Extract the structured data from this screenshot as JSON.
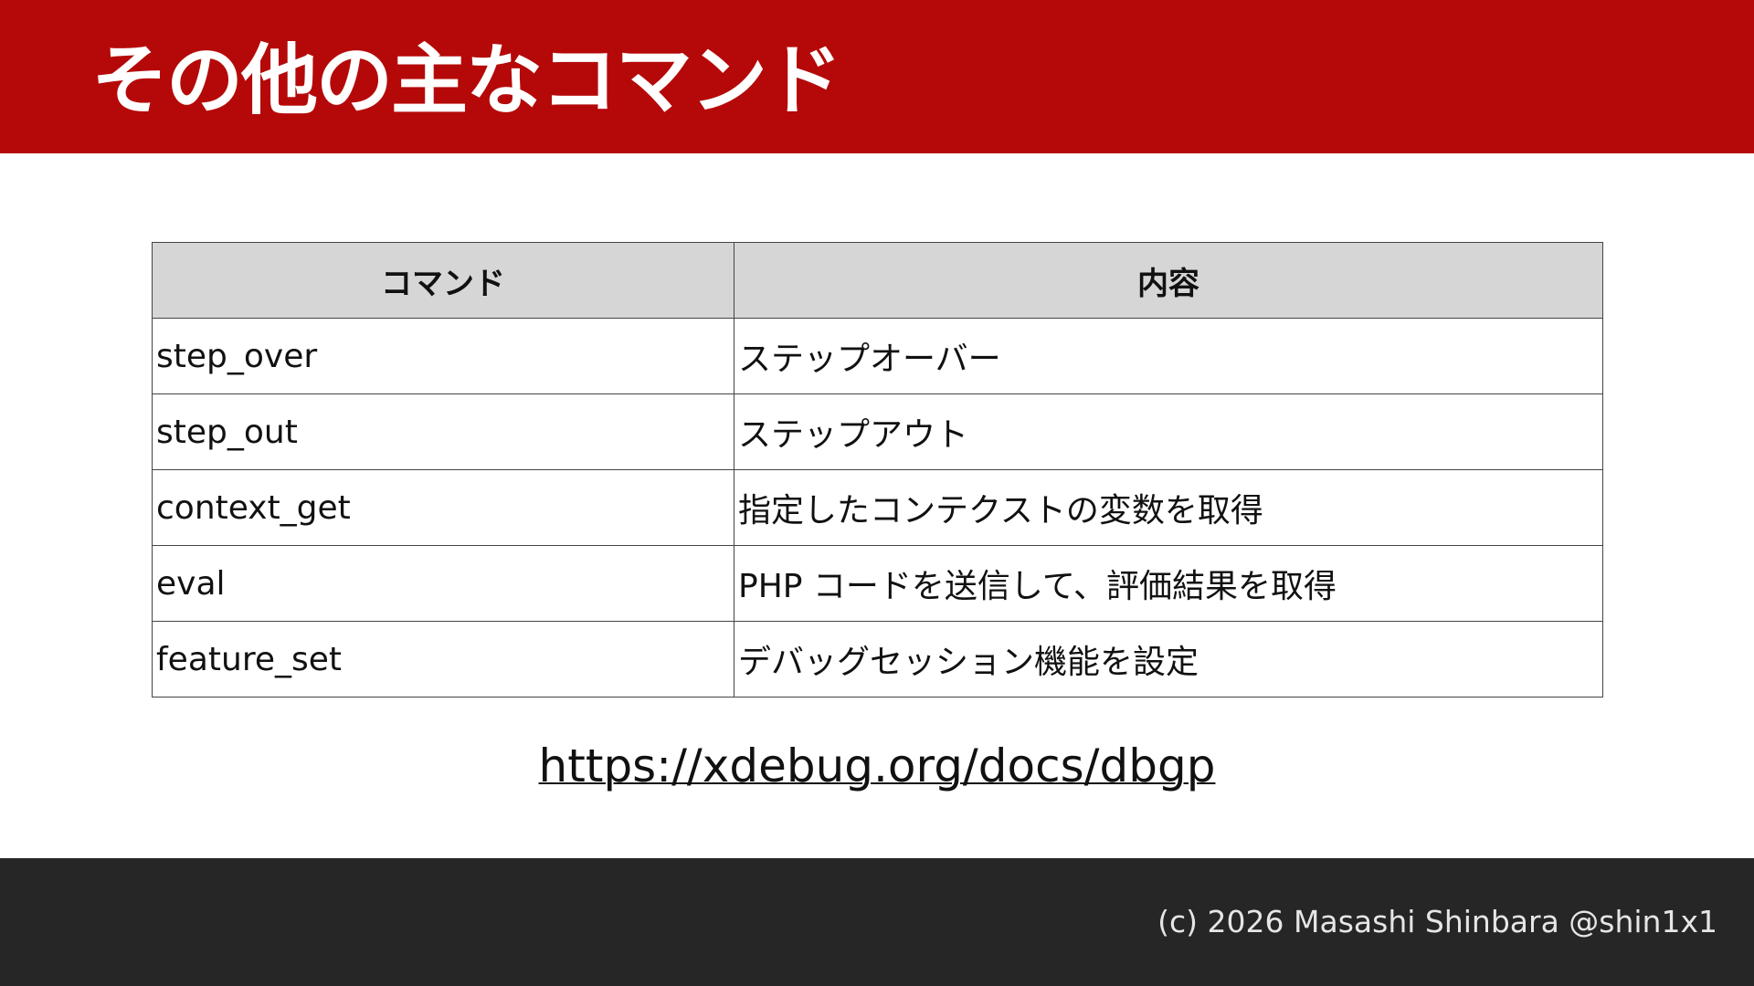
{
  "header": {
    "title": "その他の主なコマンド",
    "color": "#b50909"
  },
  "table": {
    "columns": [
      "コマンド",
      "内容"
    ],
    "rows": [
      [
        "step_over",
        "ステップオーバー"
      ],
      [
        "step_out",
        "ステップアウト"
      ],
      [
        "context_get",
        "指定したコンテクストの変数を取得"
      ],
      [
        "eval",
        "PHP コードを送信して、評価結果を取得"
      ],
      [
        "feature_set",
        "デバッグセッション機能を設定"
      ]
    ]
  },
  "link": {
    "text": "https://xdebug.org/docs/dbgp"
  },
  "footer": {
    "copyright": "(c) 2026 Masashi Shinbara @shin1x1",
    "color": "#262626"
  }
}
